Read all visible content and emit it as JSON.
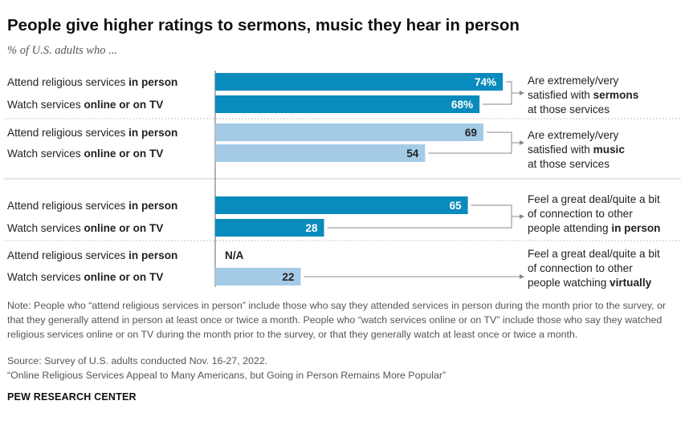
{
  "title": "People give higher ratings to sermons, music they hear in person",
  "subtitle": "% of U.S. adults who ...",
  "colors": {
    "dark": "#0a8bbd",
    "light": "#a3cbe6",
    "divider": "#c8c8c8",
    "axis": "#666666",
    "bracket": "#888888"
  },
  "chart_data": {
    "type": "bar",
    "orientation": "horizontal",
    "xlim": [
      0,
      100
    ],
    "label_parts": {
      "in_person": [
        "Attend religious services ",
        "in person"
      ],
      "online": [
        "Watch services ",
        "online or on TV"
      ]
    },
    "groups": [
      {
        "rows": [
          {
            "label": "Attend religious services in person",
            "kind": "in_person",
            "value": 74,
            "display": "74%",
            "shade": "dark"
          },
          {
            "label": "Watch services online or on TV",
            "kind": "online",
            "value": 68,
            "display": "68%",
            "shade": "dark"
          }
        ],
        "annotation": [
          "Are extremely/very",
          "satisfied with |sermons|",
          "at those services"
        ]
      },
      {
        "rows": [
          {
            "label": "Attend religious services in person",
            "kind": "in_person",
            "value": 69,
            "display": "69",
            "shade": "light"
          },
          {
            "label": "Watch services online or on TV",
            "kind": "online",
            "value": 54,
            "display": "54",
            "shade": "light"
          }
        ],
        "annotation": [
          "Are extremely/very",
          "satisfied with |music|",
          "at those services"
        ]
      },
      {
        "rows": [
          {
            "label": "Attend religious services in person",
            "kind": "in_person",
            "value": 65,
            "display": "65",
            "shade": "dark"
          },
          {
            "label": "Watch services online or on TV",
            "kind": "online",
            "value": 28,
            "display": "28",
            "shade": "dark"
          }
        ],
        "annotation": [
          "Feel a great deal/quite a bit",
          "of connection to other",
          "people attending |in person|"
        ]
      },
      {
        "rows": [
          {
            "label": "Attend religious services in person",
            "kind": "in_person",
            "value": null,
            "display": "N/A",
            "shade": "light"
          },
          {
            "label": "Watch services online or on TV",
            "kind": "online",
            "value": 22,
            "display": "22",
            "shade": "light"
          }
        ],
        "annotation": [
          "Feel a great deal/quite a bit",
          "of connection to other",
          "people watching |virtually|"
        ]
      }
    ]
  },
  "note": "Note: People who “attend religious services in person” include those who say they attended services in person during the month prior to the survey, or that they generally attend in person at least once or twice a month. People who “watch services online or on TV” include those who say they watched religious services online or on TV during the month prior to the survey, or that they generally watch at least once or twice a month.",
  "source": "Source: Survey of U.S. adults conducted Nov. 16-27, 2022.",
  "report": "“Online Religious Services Appeal to Many Americans, but Going in Person Remains More Popular”",
  "brand": "PEW RESEARCH CENTER"
}
